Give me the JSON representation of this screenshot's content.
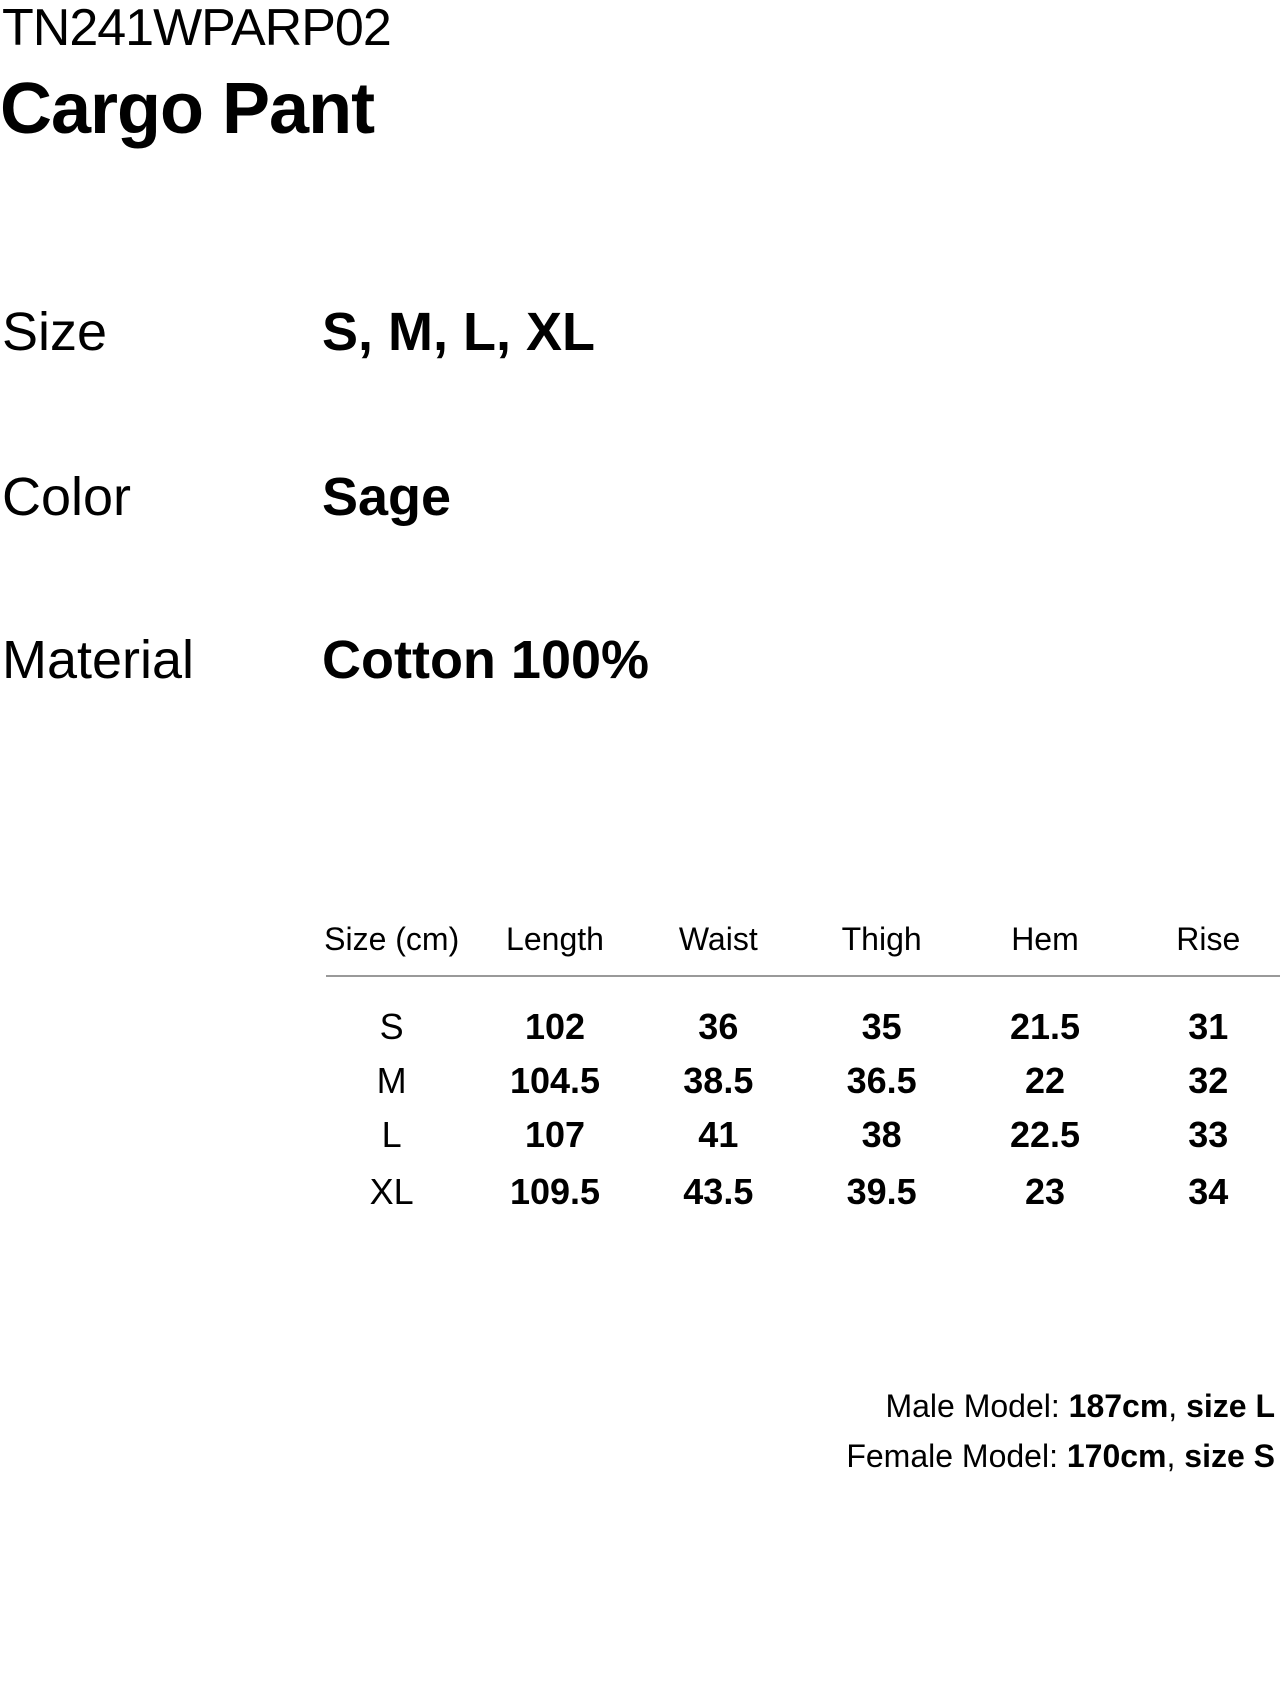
{
  "product": {
    "code": "TN241WPARP02",
    "name": "Cargo Pant"
  },
  "specs": [
    {
      "label": "Size",
      "value": "S, M, L, XL"
    },
    {
      "label": "Color",
      "value": "Sage"
    },
    {
      "label": "Material",
      "value": "Cotton 100%"
    }
  ],
  "size_chart": {
    "unit": "cm",
    "headers": [
      "Size (cm)",
      "Length",
      "Waist",
      "Thigh",
      "Hem",
      "Rise"
    ],
    "rows": [
      {
        "size": "S",
        "values": [
          "102",
          "36",
          "35",
          "21.5",
          "31"
        ]
      },
      {
        "size": "M",
        "values": [
          "104.5",
          "38.5",
          "36.5",
          "22",
          "32"
        ]
      },
      {
        "size": "L",
        "values": [
          "107",
          "41",
          "38",
          "22.5",
          "33"
        ]
      },
      {
        "size": "XL",
        "values": [
          "109.5",
          "43.5",
          "39.5",
          "23",
          "34"
        ]
      }
    ]
  },
  "model_info": {
    "male": {
      "prefix": "Male Model: ",
      "height": "187cm",
      "separator": ", ",
      "size": "size L"
    },
    "female": {
      "prefix": "Female Model: ",
      "height": "170cm",
      "separator": ", ",
      "size": "size S"
    }
  },
  "colors": {
    "text": "#000000",
    "divider_line": "#999999",
    "background": "#ffffff"
  }
}
